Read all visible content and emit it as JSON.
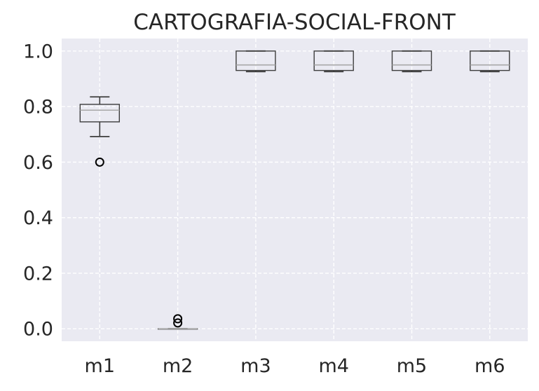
{
  "chart_data": {
    "type": "box",
    "title": "CARTOGRAFIA-SOCIAL-FRONT",
    "xlabel": "",
    "ylabel": "",
    "categories": [
      "m1",
      "m2",
      "m3",
      "m4",
      "m5",
      "m6"
    ],
    "y_ticks": [
      "0.0",
      "0.2",
      "0.4",
      "0.6",
      "0.8",
      "1.0"
    ],
    "ylim": [
      -0.045,
      1.045
    ],
    "grid": true,
    "grid_style": "dashed",
    "boxes": [
      {
        "name": "m1",
        "whisker_low": 0.692,
        "q1": 0.745,
        "median": 0.787,
        "q3": 0.808,
        "whisker_high": 0.835,
        "outliers": [
          0.6
        ]
      },
      {
        "name": "m2",
        "whisker_low": 0.0,
        "q1": 0.0,
        "median": 0.0,
        "q3": 0.0,
        "whisker_high": 0.0,
        "outliers": [
          0.021,
          0.036
        ]
      },
      {
        "name": "m3",
        "whisker_low": 0.926,
        "q1": 0.93,
        "median": 0.95,
        "q3": 1.0,
        "whisker_high": 1.0,
        "outliers": []
      },
      {
        "name": "m4",
        "whisker_low": 0.926,
        "q1": 0.93,
        "median": 0.95,
        "q3": 1.0,
        "whisker_high": 1.0,
        "outliers": []
      },
      {
        "name": "m5",
        "whisker_low": 0.926,
        "q1": 0.93,
        "median": 0.95,
        "q3": 1.0,
        "whisker_high": 1.0,
        "outliers": []
      },
      {
        "name": "m6",
        "whisker_low": 0.926,
        "q1": 0.93,
        "median": 0.95,
        "q3": 1.0,
        "whisker_high": 1.0,
        "outliers": []
      }
    ],
    "colors": {
      "plot_background": "#eaeaf2",
      "grid": "#ffffff",
      "box_edge": "#3d3d3d",
      "median": "#a8a8a8",
      "outlier": "#000000",
      "text": "#262626"
    }
  }
}
